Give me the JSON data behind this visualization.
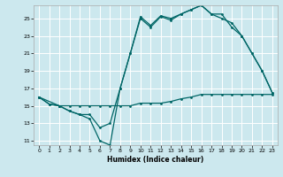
{
  "xlabel": "Humidex (Indice chaleur)",
  "bg_color": "#cce8ee",
  "grid_color": "#ffffff",
  "line_color": "#006666",
  "xlim": [
    -0.5,
    23.5
  ],
  "ylim": [
    10.5,
    26.5
  ],
  "xticks": [
    0,
    1,
    2,
    3,
    4,
    5,
    6,
    7,
    8,
    9,
    10,
    11,
    12,
    13,
    14,
    15,
    16,
    17,
    18,
    19,
    20,
    21,
    22,
    23
  ],
  "yticks": [
    11,
    13,
    15,
    17,
    19,
    21,
    23,
    25
  ],
  "line1_x": [
    0,
    1,
    2,
    3,
    4,
    5,
    6,
    7,
    8,
    9,
    10,
    11,
    12,
    13,
    14,
    15,
    16,
    17,
    18,
    19,
    20,
    21,
    22,
    23
  ],
  "line1_y": [
    16.0,
    15.2,
    15.0,
    14.4,
    14.0,
    13.5,
    11.0,
    10.5,
    17.0,
    21.0,
    25.2,
    24.2,
    25.3,
    25.0,
    25.5,
    26.0,
    26.5,
    25.5,
    25.0,
    24.5,
    23.0,
    21.0,
    19.0,
    16.5
  ],
  "line2_x": [
    0,
    2,
    3,
    4,
    5,
    6,
    7,
    8,
    9,
    10,
    11,
    12,
    13,
    14,
    15,
    16,
    17,
    18,
    19,
    20,
    21,
    22,
    23
  ],
  "line2_y": [
    16.0,
    15.0,
    15.0,
    15.0,
    15.0,
    15.0,
    15.0,
    15.0,
    15.0,
    15.3,
    15.3,
    15.3,
    15.5,
    15.8,
    16.0,
    16.3,
    16.3,
    16.3,
    16.3,
    16.3,
    16.3,
    16.3,
    16.3
  ],
  "line3_x": [
    0,
    1,
    2,
    3,
    4,
    5,
    6,
    7,
    8,
    9,
    10,
    11,
    12,
    13,
    14,
    15,
    16,
    17,
    18,
    19,
    20,
    21,
    22,
    23
  ],
  "line3_y": [
    16.0,
    15.2,
    15.0,
    14.4,
    14.0,
    14.0,
    12.5,
    13.0,
    17.0,
    21.0,
    25.0,
    24.0,
    25.2,
    24.8,
    25.5,
    26.0,
    26.5,
    25.5,
    25.5,
    24.0,
    23.0,
    21.0,
    19.0,
    16.5
  ]
}
